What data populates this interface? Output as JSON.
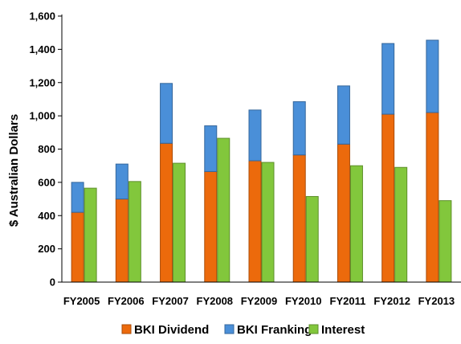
{
  "chart_data": {
    "type": "bar",
    "stacked_groups": true,
    "title": "",
    "xlabel": "",
    "ylabel": "$ Australian Dollars",
    "ylim": [
      0,
      1600
    ],
    "yticks": [
      0,
      200,
      400,
      600,
      800,
      1000,
      1200,
      1400,
      1600
    ],
    "ytick_labels": [
      "0",
      "200",
      "400",
      "600",
      "800",
      "1,000",
      "1,200",
      "1,400",
      "1,600"
    ],
    "grid": false,
    "legend_position": "bottom",
    "categories": [
      "FY2005",
      "FY2006",
      "FY2007",
      "FY2008",
      "FY2009",
      "FY2010",
      "FY2011",
      "FY2012",
      "FY2013"
    ],
    "series": [
      {
        "name": "BKI Dividend",
        "stack": "BKI",
        "color": "#ec6a0c",
        "values": [
          420,
          500,
          835,
          665,
          730,
          765,
          830,
          1010,
          1020
        ]
      },
      {
        "name": "BKI Franking",
        "stack": "BKI",
        "color": "#4a8fd8",
        "values": [
          180,
          210,
          360,
          275,
          305,
          320,
          350,
          425,
          435
        ]
      },
      {
        "name": "Interest",
        "stack": "Interest",
        "color": "#82c73c",
        "values": [
          565,
          605,
          715,
          865,
          720,
          515,
          700,
          690,
          490
        ]
      }
    ]
  }
}
